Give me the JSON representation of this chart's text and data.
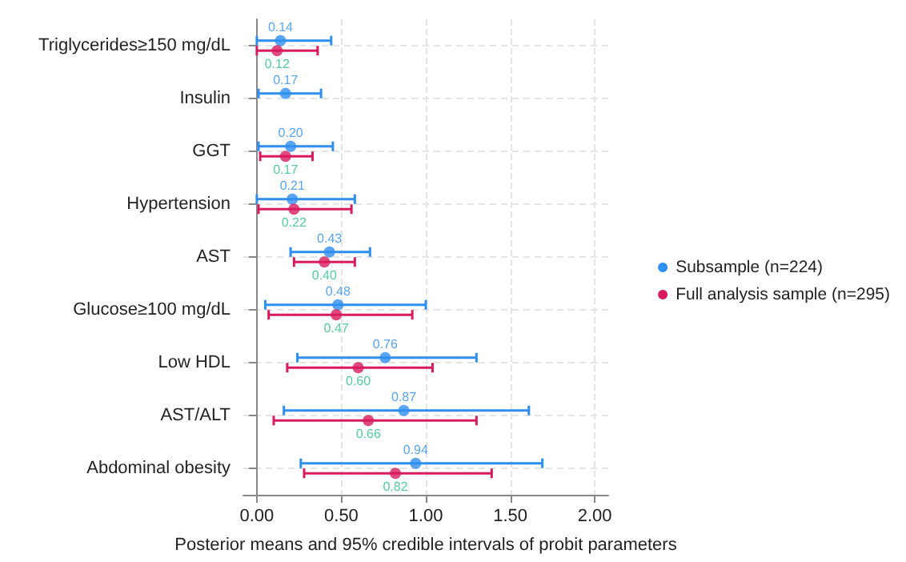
{
  "chart_data": {
    "type": "scatter",
    "orientation": "horizontal",
    "xlabel": "Posterior means and 95% credible intervals of probit parameters",
    "categories": [
      "Triglycerides≥150 mg/dL",
      "Insulin",
      "GGT",
      "Hypertension",
      "AST",
      "Glucose≥100 mg/dL",
      "Low HDL",
      "AST/ALT",
      "Abdominal obesity"
    ],
    "series": [
      {
        "name": "Subsample (n=224)",
        "color": "#2f8ff0",
        "values": [
          0.14,
          0.17,
          0.2,
          0.21,
          0.43,
          0.48,
          0.76,
          0.87,
          0.94
        ],
        "value_labels": [
          "0.14",
          "0.17",
          "0.20",
          "0.21",
          "0.43",
          "0.48",
          "0.76",
          "0.87",
          "0.94"
        ],
        "errors": [
          [
            0.0,
            0.44
          ],
          [
            0.01,
            0.38
          ],
          [
            0.01,
            0.45
          ],
          [
            0.0,
            0.58
          ],
          [
            0.2,
            0.67
          ],
          [
            0.05,
            1.0
          ],
          [
            0.24,
            1.3
          ],
          [
            0.16,
            1.61
          ],
          [
            0.26,
            1.69
          ]
        ]
      },
      {
        "name": "Full analysis sample (n=295)",
        "color": "#d81b5c",
        "values": [
          0.12,
          null,
          0.17,
          0.22,
          0.4,
          0.47,
          0.6,
          0.66,
          0.82
        ],
        "value_labels": [
          "0.12",
          null,
          "0.17",
          "0.22",
          "0.40",
          "0.47",
          "0.60",
          "0.66",
          "0.82"
        ],
        "errors": [
          [
            0.0,
            0.36
          ],
          null,
          [
            0.02,
            0.33
          ],
          [
            0.01,
            0.56
          ],
          [
            0.22,
            0.58
          ],
          [
            0.07,
            0.92
          ],
          [
            0.18,
            1.04
          ],
          [
            0.1,
            1.3
          ],
          [
            0.28,
            1.39
          ]
        ]
      }
    ],
    "xlim": [
      -0.08,
      2.08
    ],
    "xticks": [
      {
        "value": 0,
        "label": "0.00"
      },
      {
        "value": 0.5,
        "label": "0.50"
      },
      {
        "value": 1,
        "label": "1.00"
      },
      {
        "value": 1.5,
        "label": "1.50"
      },
      {
        "value": 2,
        "label": "2.00"
      }
    ],
    "grid": true,
    "legend": "right",
    "marker": "circle"
  }
}
